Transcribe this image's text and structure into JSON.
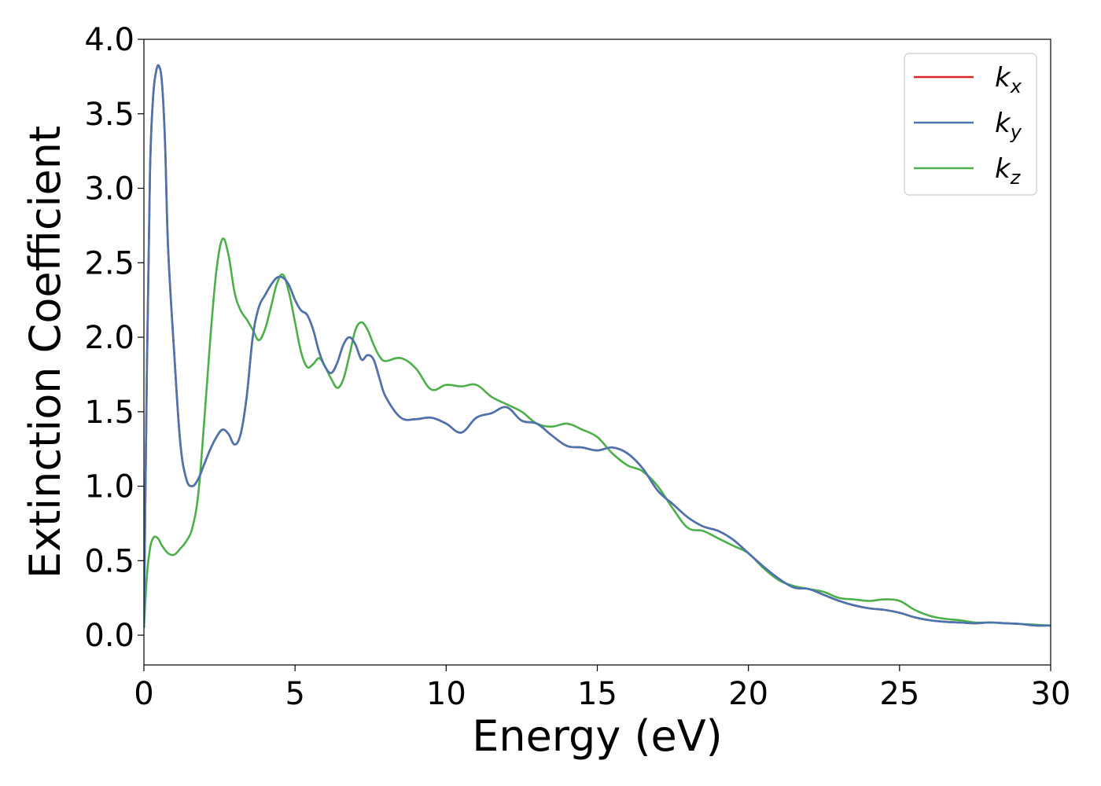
{
  "chart_data": {
    "type": "line",
    "title": "",
    "xlabel": "Energy (eV)",
    "ylabel": "Extinction Coefficient",
    "xlim": [
      0,
      30
    ],
    "ylim": [
      -0.2,
      4.0
    ],
    "xticks": [
      0,
      5,
      10,
      15,
      20,
      25,
      30
    ],
    "xtick_labels": [
      "0",
      "5",
      "10",
      "15",
      "20",
      "25",
      "30"
    ],
    "yticks": [
      0.0,
      0.5,
      1.0,
      1.5,
      2.0,
      2.5,
      3.0,
      3.5,
      4.0
    ],
    "ytick_labels": [
      "0.0",
      "0.5",
      "1.0",
      "1.5",
      "2.0",
      "2.5",
      "3.0",
      "3.5",
      "4.0"
    ],
    "grid": false,
    "legend_position": "top-right",
    "series": [
      {
        "name": "k_x",
        "label_base": "k",
        "label_sub": "x",
        "color": "#d62728",
        "x": [
          0,
          0.1,
          0.2,
          0.3,
          0.4,
          0.5,
          0.6,
          0.7,
          0.8,
          1.0,
          1.2,
          1.4,
          1.6,
          1.8,
          2.0,
          2.2,
          2.4,
          2.6,
          2.8,
          3.0,
          3.2,
          3.4,
          3.6,
          3.8,
          4.0,
          4.2,
          4.4,
          4.6,
          4.8,
          5.0,
          5.2,
          5.4,
          5.6,
          5.8,
          6.0,
          6.2,
          6.4,
          6.6,
          6.8,
          7.0,
          7.2,
          7.4,
          7.6,
          7.8,
          8.0,
          8.5,
          9.0,
          9.5,
          10.0,
          10.5,
          11.0,
          11.5,
          12.0,
          12.5,
          13.0,
          13.5,
          14.0,
          14.5,
          15.0,
          15.5,
          16.0,
          16.5,
          17.0,
          17.5,
          18.0,
          18.5,
          19.0,
          19.5,
          20.0,
          20.5,
          21.0,
          21.5,
          22.0,
          22.5,
          23.0,
          23.5,
          24.0,
          24.5,
          25.0,
          25.5,
          26.0,
          26.5,
          27.0,
          27.5,
          28.0,
          28.5,
          29.0,
          29.5,
          30.0
        ],
        "values": [
          0.05,
          1.8,
          3.1,
          3.6,
          3.78,
          3.82,
          3.7,
          3.3,
          2.6,
          1.9,
          1.3,
          1.05,
          1.0,
          1.05,
          1.15,
          1.25,
          1.33,
          1.38,
          1.35,
          1.28,
          1.35,
          1.6,
          2.0,
          2.2,
          2.28,
          2.35,
          2.4,
          2.4,
          2.35,
          2.25,
          2.18,
          2.15,
          2.05,
          1.9,
          1.8,
          1.76,
          1.83,
          1.95,
          2.0,
          1.95,
          1.85,
          1.88,
          1.85,
          1.72,
          1.6,
          1.46,
          1.45,
          1.46,
          1.42,
          1.36,
          1.46,
          1.49,
          1.53,
          1.44,
          1.42,
          1.34,
          1.27,
          1.26,
          1.24,
          1.26,
          1.22,
          1.12,
          0.97,
          0.88,
          0.79,
          0.73,
          0.7,
          0.64,
          0.55,
          0.46,
          0.38,
          0.32,
          0.31,
          0.27,
          0.23,
          0.2,
          0.18,
          0.17,
          0.15,
          0.12,
          0.1,
          0.09,
          0.085,
          0.08,
          0.085,
          0.08,
          0.075,
          0.065,
          0.065
        ]
      },
      {
        "name": "k_y",
        "label_base": "k",
        "label_sub": "y",
        "color": "#4a74b0",
        "x": [
          0,
          0.1,
          0.2,
          0.3,
          0.4,
          0.5,
          0.6,
          0.7,
          0.8,
          1.0,
          1.2,
          1.4,
          1.6,
          1.8,
          2.0,
          2.2,
          2.4,
          2.6,
          2.8,
          3.0,
          3.2,
          3.4,
          3.6,
          3.8,
          4.0,
          4.2,
          4.4,
          4.6,
          4.8,
          5.0,
          5.2,
          5.4,
          5.6,
          5.8,
          6.0,
          6.2,
          6.4,
          6.6,
          6.8,
          7.0,
          7.2,
          7.4,
          7.6,
          7.8,
          8.0,
          8.5,
          9.0,
          9.5,
          10.0,
          10.5,
          11.0,
          11.5,
          12.0,
          12.5,
          13.0,
          13.5,
          14.0,
          14.5,
          15.0,
          15.5,
          16.0,
          16.5,
          17.0,
          17.5,
          18.0,
          18.5,
          19.0,
          19.5,
          20.0,
          20.5,
          21.0,
          21.5,
          22.0,
          22.5,
          23.0,
          23.5,
          24.0,
          24.5,
          25.0,
          25.5,
          26.0,
          26.5,
          27.0,
          27.5,
          28.0,
          28.5,
          29.0,
          29.5,
          30.0
        ],
        "values": [
          0.05,
          1.8,
          3.1,
          3.6,
          3.78,
          3.82,
          3.7,
          3.3,
          2.6,
          1.9,
          1.3,
          1.05,
          1.0,
          1.05,
          1.15,
          1.25,
          1.33,
          1.38,
          1.35,
          1.28,
          1.35,
          1.6,
          2.0,
          2.2,
          2.28,
          2.35,
          2.4,
          2.4,
          2.35,
          2.25,
          2.18,
          2.15,
          2.05,
          1.9,
          1.8,
          1.76,
          1.83,
          1.95,
          2.0,
          1.95,
          1.85,
          1.88,
          1.85,
          1.72,
          1.6,
          1.46,
          1.45,
          1.46,
          1.42,
          1.36,
          1.46,
          1.49,
          1.53,
          1.44,
          1.42,
          1.34,
          1.27,
          1.26,
          1.24,
          1.26,
          1.22,
          1.12,
          0.97,
          0.88,
          0.79,
          0.73,
          0.7,
          0.64,
          0.55,
          0.46,
          0.38,
          0.32,
          0.31,
          0.27,
          0.23,
          0.2,
          0.18,
          0.17,
          0.15,
          0.12,
          0.1,
          0.09,
          0.085,
          0.08,
          0.085,
          0.08,
          0.075,
          0.065,
          0.065
        ]
      },
      {
        "name": "k_z",
        "label_base": "k",
        "label_sub": "z",
        "color": "#4daf4a",
        "x": [
          0,
          0.1,
          0.2,
          0.3,
          0.4,
          0.5,
          0.6,
          0.8,
          1.0,
          1.2,
          1.4,
          1.6,
          1.8,
          2.0,
          2.2,
          2.4,
          2.6,
          2.8,
          3.0,
          3.2,
          3.4,
          3.6,
          3.8,
          4.0,
          4.2,
          4.4,
          4.6,
          4.8,
          5.0,
          5.2,
          5.4,
          5.6,
          5.8,
          6.0,
          6.2,
          6.4,
          6.6,
          6.8,
          7.0,
          7.2,
          7.4,
          7.6,
          7.8,
          8.0,
          8.5,
          9.0,
          9.5,
          10.0,
          10.5,
          11.0,
          11.5,
          12.0,
          12.5,
          13.0,
          13.5,
          14.0,
          14.5,
          15.0,
          15.5,
          16.0,
          16.5,
          17.0,
          17.5,
          18.0,
          18.5,
          19.0,
          19.5,
          20.0,
          20.5,
          21.0,
          21.5,
          22.0,
          22.5,
          23.0,
          23.5,
          24.0,
          24.5,
          25.0,
          25.5,
          26.0,
          26.5,
          27.0,
          27.5,
          28.0,
          28.5,
          29.0,
          29.5,
          30.0
        ],
        "values": [
          0.05,
          0.4,
          0.58,
          0.65,
          0.66,
          0.64,
          0.6,
          0.55,
          0.54,
          0.58,
          0.63,
          0.72,
          0.95,
          1.45,
          2.0,
          2.45,
          2.66,
          2.55,
          2.3,
          2.18,
          2.12,
          2.05,
          1.98,
          2.05,
          2.2,
          2.36,
          2.42,
          2.3,
          2.1,
          1.9,
          1.8,
          1.82,
          1.86,
          1.8,
          1.72,
          1.66,
          1.72,
          1.88,
          2.05,
          2.1,
          2.05,
          1.95,
          1.87,
          1.84,
          1.86,
          1.79,
          1.65,
          1.68,
          1.67,
          1.68,
          1.6,
          1.55,
          1.5,
          1.42,
          1.4,
          1.42,
          1.38,
          1.33,
          1.22,
          1.14,
          1.1,
          1.0,
          0.85,
          0.72,
          0.7,
          0.65,
          0.6,
          0.55,
          0.45,
          0.37,
          0.33,
          0.31,
          0.29,
          0.25,
          0.24,
          0.23,
          0.24,
          0.23,
          0.17,
          0.13,
          0.11,
          0.1,
          0.085,
          0.085,
          0.08,
          0.075,
          0.07,
          0.065
        ]
      }
    ]
  }
}
